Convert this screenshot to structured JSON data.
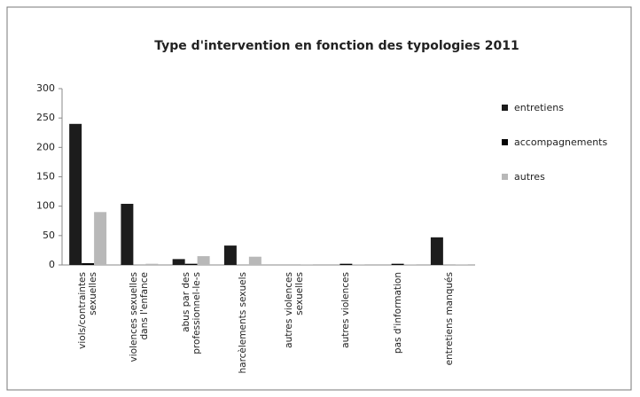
{
  "chart_data": {
    "type": "bar",
    "title": "Type d'intervention en fonction des typologies 2011",
    "categories": [
      "viols/contraintes sexuelles",
      "violences sexuelles dans l'enfance",
      "abus par des professionnel-le-s",
      "harcèlements sexuels",
      "autres violences sexuelles",
      "autres violences",
      "pas d'information",
      "entretiens manqués"
    ],
    "series": [
      {
        "name": "entretiens",
        "color": "#1c1c1c",
        "values": [
          240,
          104,
          10,
          33,
          0,
          0,
          0,
          47
        ]
      },
      {
        "name": "accompagnements",
        "color": "#050505",
        "values": [
          3,
          0,
          2,
          0,
          0,
          2,
          2,
          0
        ]
      },
      {
        "name": "autres",
        "color": "#b8b8b8",
        "values": [
          90,
          2,
          15,
          14,
          1,
          1,
          1,
          1
        ]
      }
    ],
    "ylim": [
      0,
      300
    ],
    "yticks": [
      0,
      50,
      100,
      150,
      200,
      250,
      300
    ],
    "grid": false,
    "legend": "right"
  }
}
